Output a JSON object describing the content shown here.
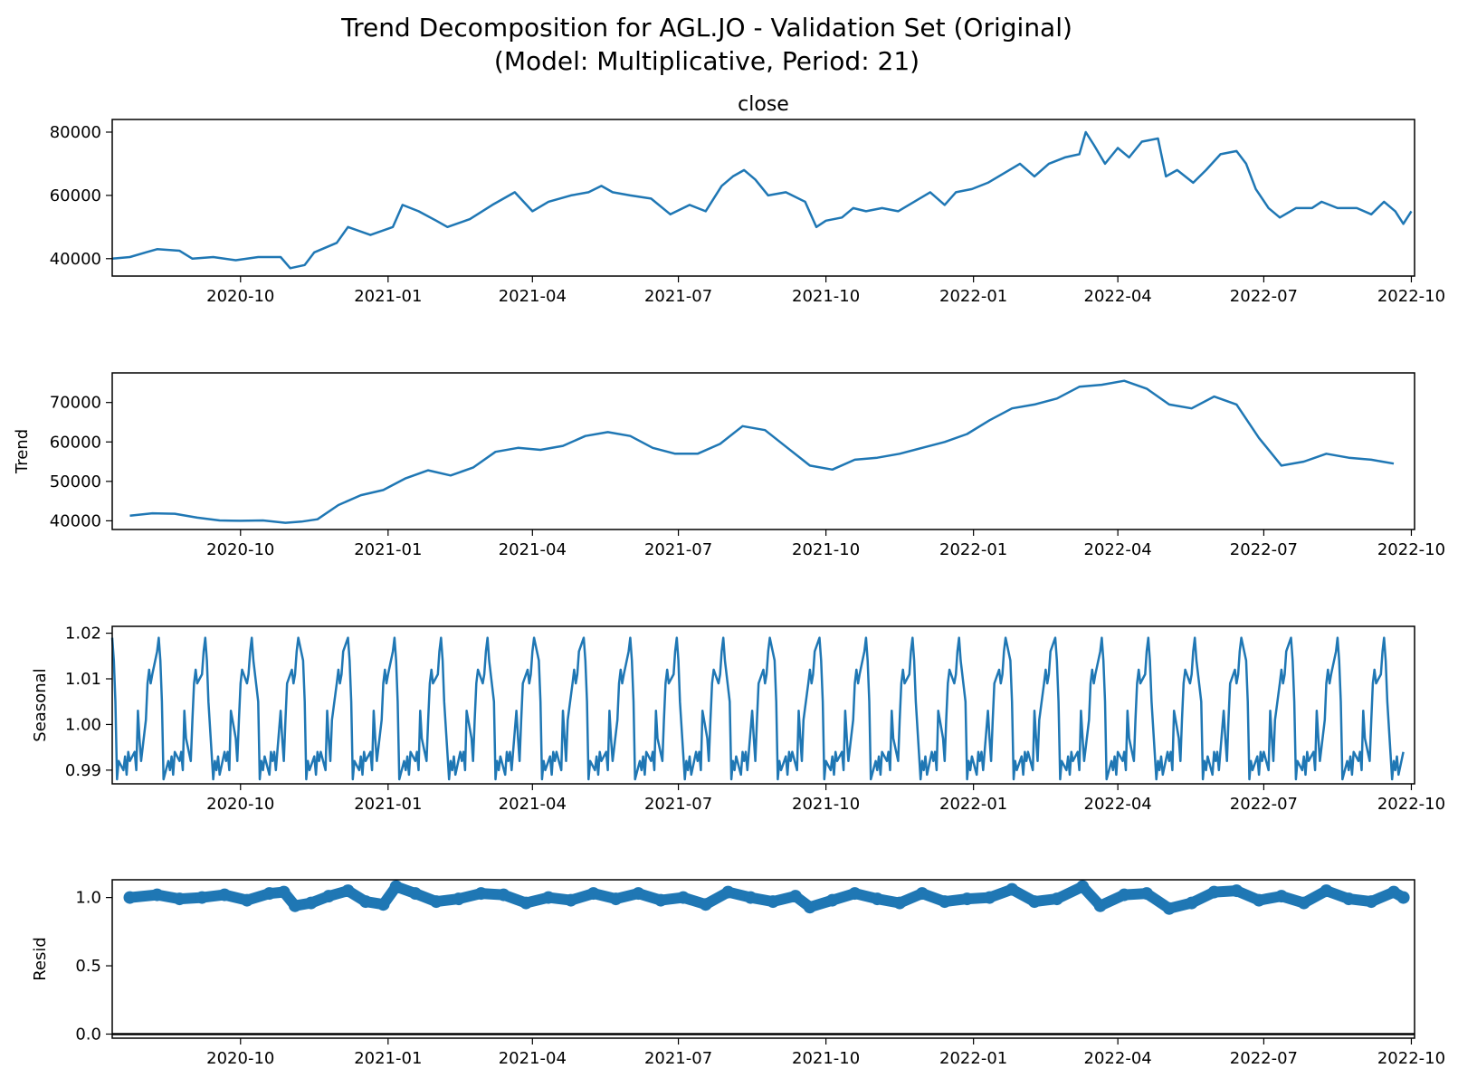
{
  "figure": {
    "title_line1": "Trend Decomposition for AGL.JO - Validation Set (Original)",
    "title_line2": "(Model: Multiplicative, Period: 21)"
  },
  "colors": {
    "series": "#1f77b4",
    "axis": "#000000",
    "background": "#ffffff"
  },
  "x_axis": {
    "type": "date",
    "range": [
      "2020-07-13",
      "2022-10-03"
    ],
    "tick_labels": [
      "2020-10",
      "2021-01",
      "2021-04",
      "2021-07",
      "2021-10",
      "2022-01",
      "2022-04",
      "2022-07",
      "2022-10"
    ],
    "tick_dates": [
      "2020-10-01",
      "2021-01-01",
      "2021-04-01",
      "2021-07-01",
      "2021-10-01",
      "2022-01-01",
      "2022-04-01",
      "2022-07-01",
      "2022-10-01"
    ]
  },
  "chart_data": [
    {
      "type": "line",
      "title": "close",
      "ylabel": "",
      "ylim": [
        34500,
        84000
      ],
      "yticks": [
        40000,
        60000,
        80000
      ],
      "grid": false,
      "series": [
        {
          "points": [
            [
              "2020-07-13",
              40000
            ],
            [
              "2020-07-24",
              40500
            ],
            [
              "2020-08-03",
              42000
            ],
            [
              "2020-08-10",
              43000
            ],
            [
              "2020-08-24",
              42500
            ],
            [
              "2020-09-01",
              40000
            ],
            [
              "2020-09-14",
              40500
            ],
            [
              "2020-09-28",
              39500
            ],
            [
              "2020-10-12",
              40500
            ],
            [
              "2020-10-26",
              40500
            ],
            [
              "2020-11-01",
              37000
            ],
            [
              "2020-11-10",
              38000
            ],
            [
              "2020-11-16",
              42000
            ],
            [
              "2020-11-30",
              45000
            ],
            [
              "2020-12-07",
              50000
            ],
            [
              "2020-12-21",
              47500
            ],
            [
              "2021-01-04",
              50000
            ],
            [
              "2021-01-10",
              57000
            ],
            [
              "2021-01-20",
              55000
            ],
            [
              "2021-01-31",
              52000
            ],
            [
              "2021-02-07",
              50000
            ],
            [
              "2021-02-21",
              52500
            ],
            [
              "2021-03-07",
              57000
            ],
            [
              "2021-03-21",
              61000
            ],
            [
              "2021-04-01",
              55000
            ],
            [
              "2021-04-11",
              58000
            ],
            [
              "2021-04-25",
              60000
            ],
            [
              "2021-05-06",
              61000
            ],
            [
              "2021-05-14",
              63000
            ],
            [
              "2021-05-21",
              61000
            ],
            [
              "2021-06-01",
              60000
            ],
            [
              "2021-06-14",
              59000
            ],
            [
              "2021-06-26",
              54000
            ],
            [
              "2021-07-08",
              57000
            ],
            [
              "2021-07-18",
              55000
            ],
            [
              "2021-07-28",
              63000
            ],
            [
              "2021-08-04",
              66000
            ],
            [
              "2021-08-11",
              68000
            ],
            [
              "2021-08-18",
              65000
            ],
            [
              "2021-08-26",
              60000
            ],
            [
              "2021-09-06",
              61000
            ],
            [
              "2021-09-18",
              58000
            ],
            [
              "2021-09-25",
              50000
            ],
            [
              "2021-10-01",
              52000
            ],
            [
              "2021-10-11",
              53000
            ],
            [
              "2021-10-18",
              56000
            ],
            [
              "2021-10-26",
              55000
            ],
            [
              "2021-11-05",
              56000
            ],
            [
              "2021-11-15",
              55000
            ],
            [
              "2021-11-25",
              58000
            ],
            [
              "2021-12-05",
              61000
            ],
            [
              "2021-12-14",
              57000
            ],
            [
              "2021-12-21",
              61000
            ],
            [
              "2021-12-31",
              62000
            ],
            [
              "2022-01-10",
              64000
            ],
            [
              "2022-01-20",
              67000
            ],
            [
              "2022-01-30",
              70000
            ],
            [
              "2022-02-08",
              66000
            ],
            [
              "2022-02-17",
              70000
            ],
            [
              "2022-02-27",
              72000
            ],
            [
              "2022-03-08",
              73000
            ],
            [
              "2022-03-12",
              80000
            ],
            [
              "2022-03-17",
              76000
            ],
            [
              "2022-03-24",
              70000
            ],
            [
              "2022-04-01",
              75000
            ],
            [
              "2022-04-08",
              72000
            ],
            [
              "2022-04-16",
              77000
            ],
            [
              "2022-04-26",
              78000
            ],
            [
              "2022-05-01",
              66000
            ],
            [
              "2022-05-08",
              68000
            ],
            [
              "2022-05-18",
              64000
            ],
            [
              "2022-05-26",
              68000
            ],
            [
              "2022-06-04",
              73000
            ],
            [
              "2022-06-14",
              74000
            ],
            [
              "2022-06-20",
              70000
            ],
            [
              "2022-06-26",
              62000
            ],
            [
              "2022-07-04",
              56000
            ],
            [
              "2022-07-11",
              53000
            ],
            [
              "2022-07-21",
              56000
            ],
            [
              "2022-07-31",
              56000
            ],
            [
              "2022-08-06",
              58000
            ],
            [
              "2022-08-16",
              56000
            ],
            [
              "2022-08-28",
              56000
            ],
            [
              "2022-09-06",
              54000
            ],
            [
              "2022-09-14",
              58000
            ],
            [
              "2022-09-21",
              55000
            ],
            [
              "2022-09-26",
              51000
            ],
            [
              "2022-10-01",
              55000
            ]
          ]
        }
      ]
    },
    {
      "type": "line",
      "title": "",
      "ylabel": "Trend",
      "ylim": [
        37800,
        77500
      ],
      "yticks": [
        40000,
        50000,
        60000,
        70000
      ],
      "grid": false,
      "series": [
        {
          "points": [
            [
              "2020-07-24",
              41300
            ],
            [
              "2020-08-07",
              41900
            ],
            [
              "2020-08-21",
              41800
            ],
            [
              "2020-09-04",
              40800
            ],
            [
              "2020-09-18",
              40100
            ],
            [
              "2020-10-01",
              40000
            ],
            [
              "2020-10-15",
              40100
            ],
            [
              "2020-10-29",
              39500
            ],
            [
              "2020-11-08",
              39800
            ],
            [
              "2020-11-18",
              40400
            ],
            [
              "2020-12-01",
              44000
            ],
            [
              "2020-12-15",
              46500
            ],
            [
              "2020-12-29",
              47800
            ],
            [
              "2021-01-12",
              50800
            ],
            [
              "2021-01-26",
              52800
            ],
            [
              "2021-02-09",
              51500
            ],
            [
              "2021-02-23",
              53500
            ],
            [
              "2021-03-09",
              57500
            ],
            [
              "2021-03-23",
              58500
            ],
            [
              "2021-04-06",
              58000
            ],
            [
              "2021-04-20",
              59000
            ],
            [
              "2021-05-04",
              61500
            ],
            [
              "2021-05-18",
              62500
            ],
            [
              "2021-06-01",
              61500
            ],
            [
              "2021-06-15",
              58500
            ],
            [
              "2021-06-29",
              57000
            ],
            [
              "2021-07-13",
              57000
            ],
            [
              "2021-07-27",
              59500
            ],
            [
              "2021-08-10",
              64000
            ],
            [
              "2021-08-24",
              63000
            ],
            [
              "2021-09-07",
              58500
            ],
            [
              "2021-09-21",
              54000
            ],
            [
              "2021-10-05",
              53000
            ],
            [
              "2021-10-19",
              55500
            ],
            [
              "2021-11-02",
              56000
            ],
            [
              "2021-11-16",
              57000
            ],
            [
              "2021-11-30",
              58500
            ],
            [
              "2021-12-14",
              60000
            ],
            [
              "2021-12-28",
              62000
            ],
            [
              "2022-01-11",
              65500
            ],
            [
              "2022-01-25",
              68500
            ],
            [
              "2022-02-08",
              69500
            ],
            [
              "2022-02-22",
              71000
            ],
            [
              "2022-03-08",
              74000
            ],
            [
              "2022-03-22",
              74500
            ],
            [
              "2022-04-05",
              75500
            ],
            [
              "2022-04-19",
              73500
            ],
            [
              "2022-05-03",
              69500
            ],
            [
              "2022-05-17",
              68500
            ],
            [
              "2022-05-31",
              71500
            ],
            [
              "2022-06-14",
              69500
            ],
            [
              "2022-06-28",
              61000
            ],
            [
              "2022-07-12",
              54000
            ],
            [
              "2022-07-26",
              55000
            ],
            [
              "2022-08-09",
              57000
            ],
            [
              "2022-08-23",
              56000
            ],
            [
              "2022-09-06",
              55500
            ],
            [
              "2022-09-20",
              54500
            ]
          ]
        }
      ]
    },
    {
      "type": "line",
      "title": "",
      "ylabel": "Seasonal",
      "ylim": [
        0.987,
        1.0215
      ],
      "yticks": [
        0.99,
        1.0,
        1.01,
        1.02
      ],
      "yticklabels": [
        "0.99",
        "1.00",
        "1.01",
        "1.02"
      ],
      "grid": false,
      "period_trading_days": 21,
      "series": [
        {
          "start": "2020-07-13",
          "pattern": [
            1.019,
            1.014,
            1.005,
            0.988,
            0.992,
            0.99,
            0.993,
            0.989,
            0.994,
            0.992,
            0.994,
            0.99,
            1.003,
            0.997,
            0.992,
            1.001,
            1.009,
            1.012,
            1.009,
            1.011,
            1.016
          ],
          "end": "2022-09-26"
        }
      ]
    },
    {
      "type": "scatter",
      "title": "",
      "ylabel": "Resid",
      "ylim": [
        -0.03,
        1.13
      ],
      "yticks": [
        0.0,
        0.5,
        1.0
      ],
      "yticklabels": [
        "0.0",
        "0.5",
        "1.0"
      ],
      "baseline": 0.0,
      "grid": false,
      "series": [
        {
          "points": [
            [
              "2020-07-24",
              1.0
            ],
            [
              "2020-08-10",
              1.02
            ],
            [
              "2020-08-24",
              0.99
            ],
            [
              "2020-09-07",
              1.0
            ],
            [
              "2020-09-21",
              1.02
            ],
            [
              "2020-10-05",
              0.98
            ],
            [
              "2020-10-19",
              1.03
            ],
            [
              "2020-10-28",
              1.04
            ],
            [
              "2020-11-04",
              0.94
            ],
            [
              "2020-11-14",
              0.96
            ],
            [
              "2020-11-25",
              1.01
            ],
            [
              "2020-12-07",
              1.05
            ],
            [
              "2020-12-18",
              0.97
            ],
            [
              "2020-12-29",
              0.95
            ],
            [
              "2021-01-06",
              1.08
            ],
            [
              "2021-01-18",
              1.03
            ],
            [
              "2021-01-31",
              0.97
            ],
            [
              "2021-02-14",
              0.99
            ],
            [
              "2021-02-28",
              1.03
            ],
            [
              "2021-03-14",
              1.02
            ],
            [
              "2021-03-28",
              0.96
            ],
            [
              "2021-04-11",
              1.0
            ],
            [
              "2021-04-25",
              0.98
            ],
            [
              "2021-05-09",
              1.03
            ],
            [
              "2021-05-23",
              0.99
            ],
            [
              "2021-06-06",
              1.03
            ],
            [
              "2021-06-20",
              0.98
            ],
            [
              "2021-07-04",
              1.0
            ],
            [
              "2021-07-18",
              0.95
            ],
            [
              "2021-08-01",
              1.04
            ],
            [
              "2021-08-15",
              1.0
            ],
            [
              "2021-08-29",
              0.97
            ],
            [
              "2021-09-12",
              1.01
            ],
            [
              "2021-09-21",
              0.93
            ],
            [
              "2021-10-05",
              0.98
            ],
            [
              "2021-10-19",
              1.03
            ],
            [
              "2021-11-02",
              0.99
            ],
            [
              "2021-11-16",
              0.96
            ],
            [
              "2021-11-30",
              1.03
            ],
            [
              "2021-12-14",
              0.97
            ],
            [
              "2021-12-28",
              0.99
            ],
            [
              "2022-01-11",
              1.0
            ],
            [
              "2022-01-25",
              1.06
            ],
            [
              "2022-02-08",
              0.97
            ],
            [
              "2022-02-22",
              0.99
            ],
            [
              "2022-03-10",
              1.08
            ],
            [
              "2022-03-21",
              0.94
            ],
            [
              "2022-04-05",
              1.02
            ],
            [
              "2022-04-19",
              1.03
            ],
            [
              "2022-05-03",
              0.92
            ],
            [
              "2022-05-17",
              0.96
            ],
            [
              "2022-05-31",
              1.04
            ],
            [
              "2022-06-14",
              1.05
            ],
            [
              "2022-06-28",
              0.98
            ],
            [
              "2022-07-12",
              1.01
            ],
            [
              "2022-07-26",
              0.96
            ],
            [
              "2022-08-09",
              1.05
            ],
            [
              "2022-08-23",
              0.99
            ],
            [
              "2022-09-06",
              0.97
            ],
            [
              "2022-09-20",
              1.04
            ],
            [
              "2022-09-26",
              1.0
            ]
          ]
        }
      ]
    }
  ]
}
